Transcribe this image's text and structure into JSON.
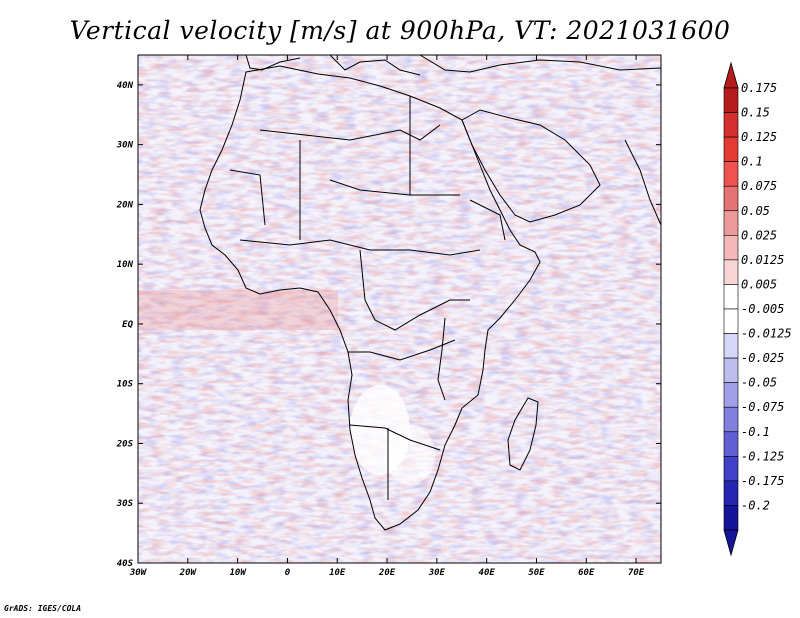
{
  "title": "Vertical velocity [m/s] at 900hPa, VT: 2021031600",
  "credit": "GrADS: IGES/COLA",
  "map": {
    "lat_labels": [
      "40N",
      "30N",
      "20N",
      "10N",
      "EQ",
      "10S",
      "20S",
      "30S",
      "40S"
    ],
    "lon_labels": [
      "30W",
      "20W",
      "10W",
      "0",
      "10E",
      "20E",
      "30E",
      "40E",
      "50E",
      "60E",
      "70E"
    ],
    "lat_range": [
      -40,
      45
    ],
    "lon_range": [
      -30,
      75
    ]
  },
  "colorbar": {
    "labels": [
      "0.175",
      "0.15",
      "0.125",
      "0.1",
      "0.075",
      "0.05",
      "0.025",
      "0.0125",
      "0.005",
      "-0.005",
      "-0.0125",
      "-0.025",
      "-0.05",
      "-0.075",
      "-0.1",
      "-0.125",
      "-0.175",
      "-0.2"
    ],
    "colors": [
      "#b71c1c",
      "#d32f2f",
      "#e53935",
      "#ef5350",
      "#e57373",
      "#ef9a9a",
      "#f4b8b8",
      "#f9d6d6",
      "#ffffff",
      "#ffffff",
      "#d6d6f6",
      "#bdbdf0",
      "#a0a0e8",
      "#8080de",
      "#6060d4",
      "#4040c8",
      "#2525b4",
      "#15159a"
    ]
  }
}
